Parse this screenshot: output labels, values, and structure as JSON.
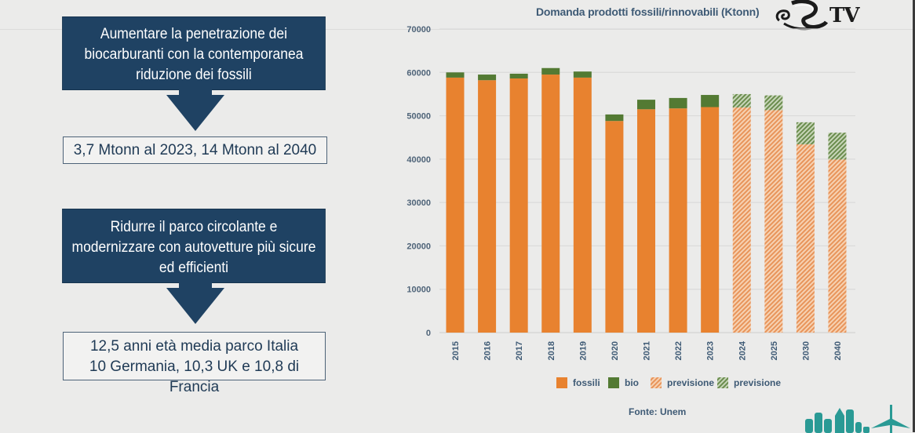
{
  "left_panel": {
    "block1": {
      "heading_lines": [
        "Aumentare la penetrazione dei",
        "biocarburanti con la contemporanea",
        "riduzione dei fossili"
      ],
      "result_lines": [
        "3,7 Mtonn al 2023, 14 Mtonn al 2040"
      ]
    },
    "block2": {
      "heading_lines": [
        "Ridurre il parco circolante e",
        "modernizzare con autovetture più sicure",
        "ed efficienti"
      ],
      "result_lines": [
        "12,5 anni età media parco Italia",
        "10 Germania, 10,3 UK e 10,8 di Francia"
      ]
    }
  },
  "logo": {
    "icon": "ornate-s-logo-icon",
    "text": "TV"
  },
  "source": "Fonte: Unem",
  "colors": {
    "fossili": "#e8822f",
    "bio": "#537a33",
    "box_dark": "#1f4263",
    "text_dark": "#3e5a75",
    "skyline": "#2a9a95"
  },
  "chart_data": {
    "type": "bar",
    "stacked": true,
    "title": "Domanda prodotti fossili/rinnovabili (Ktonn)",
    "xlabel": "",
    "ylabel": "",
    "ylim": [
      0,
      70000
    ],
    "yticks": [
      0,
      10000,
      20000,
      30000,
      40000,
      50000,
      60000,
      70000
    ],
    "grid": true,
    "legend_position": "bottom",
    "categories": [
      "2015",
      "2016",
      "2017",
      "2018",
      "2019",
      "2020",
      "2021",
      "2022",
      "2023",
      "2024",
      "2025",
      "2030",
      "2040"
    ],
    "forecast_from_index": 9,
    "series": [
      {
        "name": "fossili",
        "values": [
          58800,
          58200,
          58600,
          59500,
          58800,
          48800,
          51500,
          51700,
          52000,
          51900,
          51300,
          43400,
          39900
        ]
      },
      {
        "name": "bio",
        "values": [
          1200,
          1300,
          1100,
          1500,
          1400,
          1500,
          2200,
          2400,
          2800,
          3100,
          3400,
          5100,
          6200
        ]
      }
    ],
    "legend": [
      {
        "label": "fossili",
        "style": "solid",
        "series": "fossili"
      },
      {
        "label": "bio",
        "style": "solid",
        "series": "bio"
      },
      {
        "label": "previsione",
        "style": "hatched",
        "series": "fossili"
      },
      {
        "label": "previsione",
        "style": "hatched",
        "series": "bio"
      }
    ]
  }
}
